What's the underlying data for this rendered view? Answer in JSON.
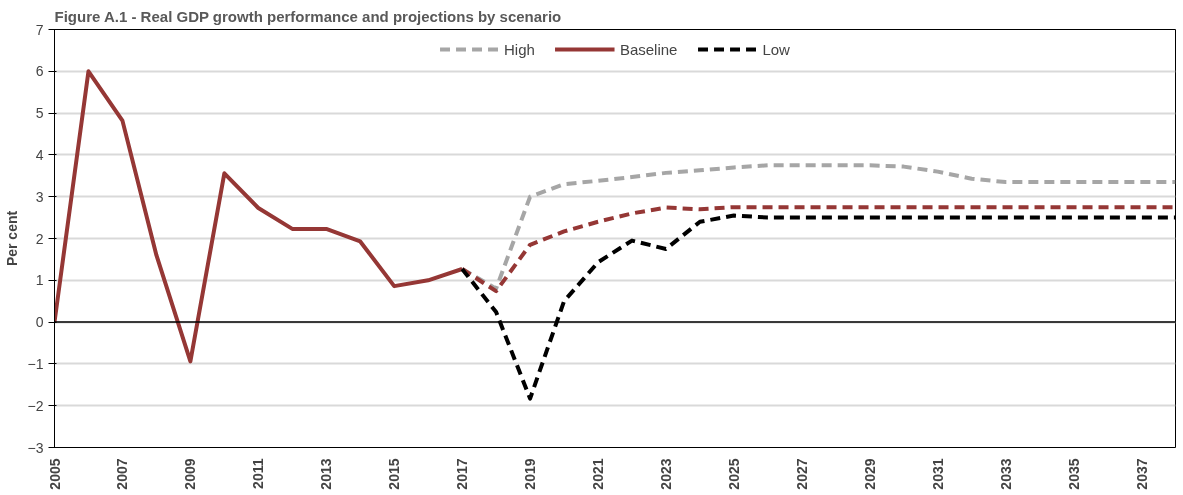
{
  "chart_data": {
    "type": "line",
    "title": "Figure A.1 - Real GDP growth performance and projections by scenario",
    "ylabel": "Per cent",
    "x": [
      2005,
      2006,
      2007,
      2008,
      2009,
      2010,
      2011,
      2012,
      2013,
      2014,
      2015,
      2016,
      2017,
      2018,
      2019,
      2020,
      2021,
      2022,
      2023,
      2024,
      2025,
      2026,
      2027,
      2028,
      2029,
      2030,
      2031,
      2032,
      2033,
      2034,
      2035,
      2036,
      2037,
      2038
    ],
    "series": [
      {
        "name": "High",
        "color": "#a6a6a6",
        "line_style": "dashed",
        "values": [
          null,
          null,
          null,
          null,
          null,
          null,
          null,
          null,
          null,
          null,
          null,
          null,
          1.27,
          0.8,
          3.0,
          3.3,
          3.38,
          3.47,
          3.57,
          3.63,
          3.7,
          3.75,
          3.75,
          3.75,
          3.75,
          3.72,
          3.6,
          3.43,
          3.35,
          3.35,
          3.35,
          3.35,
          3.35,
          3.35
        ]
      },
      {
        "name": "Baseline",
        "color": "#953735",
        "line_style": "solid",
        "values": [
          0,
          6.0,
          4.82,
          1.6,
          -0.94,
          3.56,
          2.73,
          2.23,
          2.23,
          1.93,
          0.86,
          1.0,
          1.27,
          null,
          null,
          null,
          null,
          null,
          null,
          null,
          null,
          null,
          null,
          null,
          null,
          null,
          null,
          null,
          null,
          null,
          null,
          null,
          null,
          null
        ]
      },
      {
        "color": "#953735",
        "line_style": "dashed",
        "values": [
          null,
          null,
          null,
          null,
          null,
          null,
          null,
          null,
          null,
          null,
          null,
          null,
          1.27,
          0.74,
          1.85,
          2.17,
          2.4,
          2.6,
          2.74,
          2.7,
          2.75,
          2.75,
          2.75,
          2.75,
          2.75,
          2.75,
          2.75,
          2.75,
          2.75,
          2.75,
          2.75,
          2.75,
          2.75,
          2.75
        ]
      },
      {
        "name": "Low",
        "color": "#000000",
        "line_style": "dashed",
        "values": [
          null,
          null,
          null,
          null,
          null,
          null,
          null,
          null,
          null,
          null,
          null,
          null,
          1.27,
          0.24,
          -1.83,
          0.5,
          1.43,
          1.95,
          1.75,
          2.4,
          2.55,
          2.5,
          2.5,
          2.5,
          2.5,
          2.5,
          2.5,
          2.5,
          2.5,
          2.5,
          2.5,
          2.5,
          2.5,
          2.5
        ]
      }
    ],
    "xlim": [
      2005,
      2038
    ],
    "xticks": [
      2005,
      2007,
      2009,
      2011,
      2013,
      2015,
      2017,
      2019,
      2021,
      2023,
      2025,
      2027,
      2029,
      2031,
      2033,
      2035,
      2037
    ],
    "ylim": [
      -3,
      7
    ],
    "yticks": [
      -3,
      -2,
      -1,
      0,
      1,
      2,
      3,
      4,
      5,
      6,
      7
    ],
    "ref_lines": [
      {
        "axis": "y",
        "value": 0,
        "color": "#000000"
      }
    ],
    "grid": "y",
    "legend": "top"
  }
}
